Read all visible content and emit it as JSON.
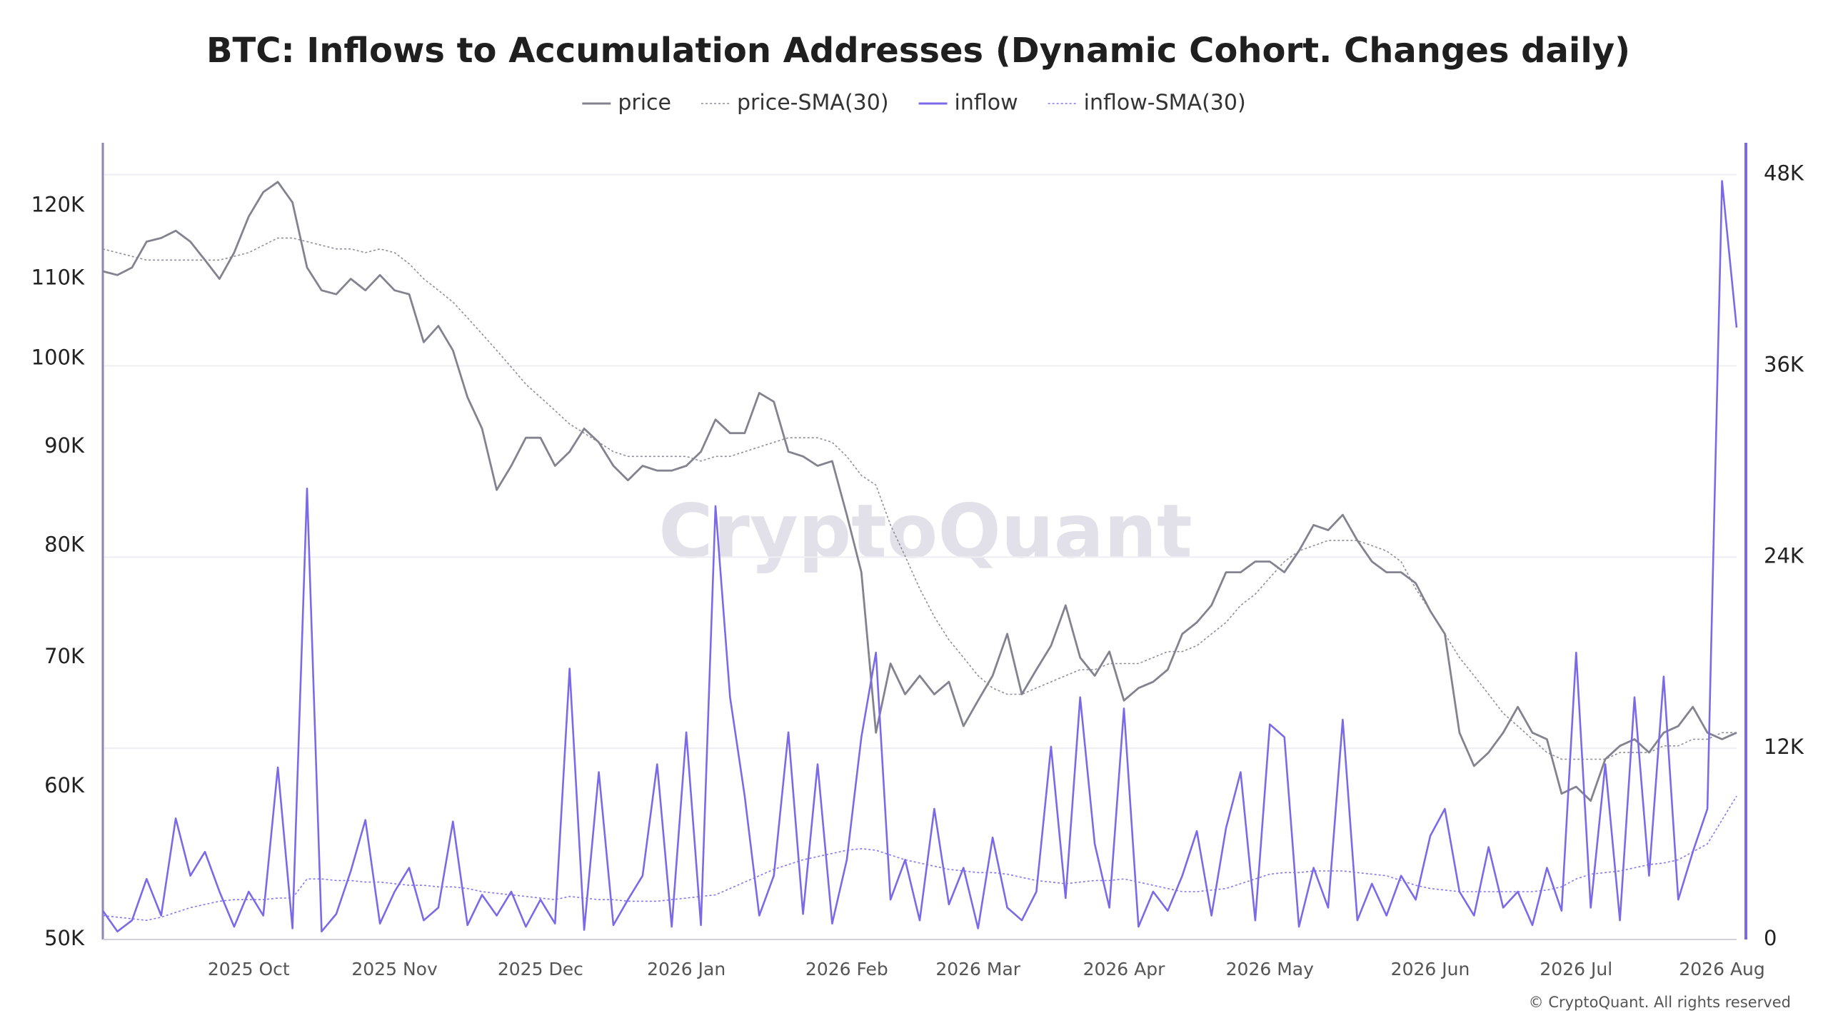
{
  "chart_data": {
    "type": "line",
    "title": "BTC: Inflows to Accumulation Addresses (Dynamic Cohort. Changes daily)",
    "watermark": "CryptoQuant",
    "credit": "© CryptoQuant. All rights reserved",
    "categories": [
      null,
      null,
      null,
      null,
      null,
      null,
      null,
      null,
      null,
      null,
      "2025 Oct",
      null,
      null,
      null,
      null,
      null,
      null,
      null,
      null,
      null,
      "2025 Nov",
      null,
      null,
      null,
      null,
      null,
      null,
      null,
      null,
      null,
      "2025 Dec",
      null,
      null,
      null,
      null,
      null,
      null,
      null,
      null,
      null,
      "2026 Jan",
      null,
      null,
      null,
      null,
      null,
      null,
      null,
      null,
      null,
      null,
      "2026 Feb",
      null,
      null,
      null,
      null,
      null,
      null,
      null,
      null,
      "2026 Mar",
      null,
      null,
      null,
      null,
      null,
      null,
      null,
      null,
      null,
      "2026 Apr",
      null,
      null,
      null,
      null,
      null,
      null,
      null,
      null,
      null,
      "2026 May",
      null,
      null,
      null,
      null,
      null,
      null,
      null,
      null,
      null,
      null,
      "2026 Jun",
      null,
      null,
      null,
      null,
      null,
      null,
      null,
      null,
      null,
      "2026 Jul",
      null,
      null,
      null,
      null,
      null,
      null,
      null,
      null,
      null,
      "2026 Aug",
      null
    ],
    "ylog": true,
    "ylim": [
      50000,
      129400
    ],
    "yticks": [
      {
        "value": 50000,
        "label": "50K"
      },
      {
        "value": 60000,
        "label": "60K"
      },
      {
        "value": 70000,
        "label": "70K"
      },
      {
        "value": 80000,
        "label": "80K"
      },
      {
        "value": 90000,
        "label": "90K"
      },
      {
        "value": 100000,
        "label": "100K"
      },
      {
        "value": 110000,
        "label": "110K"
      },
      {
        "value": 120000,
        "label": "120K"
      }
    ],
    "y2lim": [
      0,
      50000
    ],
    "y2ticks": [
      0,
      {
        "value": 12000,
        "label": "12K"
      },
      {
        "value": 24000,
        "label": "24K"
      },
      {
        "value": 36000,
        "label": "36K"
      },
      {
        "value": 48000,
        "label": "48K"
      }
    ],
    "grid": true,
    "legend": "top",
    "series": [
      {
        "name": "price",
        "color": "#83838f",
        "dashed": false,
        "values": [
          111000,
          110500,
          111500,
          115000,
          115500,
          116500,
          115000,
          112500,
          110000,
          113500,
          118500,
          122000,
          123500,
          120500,
          111500,
          108500,
          108000,
          110000,
          108500,
          110500,
          108500,
          108000,
          102000,
          104000,
          101000,
          95500,
          92000,
          85500,
          88000,
          91000,
          91000,
          88000,
          89500,
          92000,
          90500,
          88000,
          86500,
          88000,
          87500,
          87500,
          88000,
          89500,
          93000,
          91500,
          91500,
          96000,
          95000,
          89500,
          89000,
          88000,
          88500,
          83000,
          77500,
          64000,
          69500,
          67000,
          68500,
          67000,
          68000,
          64500,
          66500,
          68500,
          72000,
          67000,
          69000,
          71000,
          74500,
          70000,
          68500,
          70500,
          66500,
          67500,
          68000,
          69000,
          72000,
          73000,
          74500,
          77500,
          77500,
          78500,
          78500,
          77500,
          79500,
          82000,
          81500,
          83000,
          80500,
          78500,
          77500,
          77500,
          76500,
          74000,
          72000,
          64000,
          61500,
          62500,
          64000,
          66000,
          64000,
          63500,
          59500,
          60000,
          59000,
          62000,
          63000,
          63500,
          62500,
          64000,
          64500,
          66000,
          64000,
          63500,
          64000
        ]
      },
      {
        "name": "price-SMA(30)",
        "color": "#8e8e99",
        "dashed": true,
        "values": [
          114000,
          113500,
          113000,
          112500,
          112500,
          112500,
          112500,
          112500,
          112500,
          113000,
          113500,
          114500,
          115500,
          115500,
          115000,
          114500,
          114000,
          114000,
          113500,
          114000,
          113500,
          112000,
          110000,
          108500,
          107000,
          105000,
          103000,
          101000,
          99000,
          97000,
          95500,
          94000,
          92500,
          91500,
          90500,
          89500,
          89000,
          89000,
          89000,
          89000,
          89000,
          88500,
          89000,
          89000,
          89500,
          90000,
          90500,
          91000,
          91000,
          91000,
          90500,
          89000,
          87000,
          86000,
          82000,
          79000,
          76000,
          73500,
          71500,
          70000,
          68500,
          67500,
          67000,
          67000,
          67500,
          68000,
          68500,
          69000,
          69000,
          69500,
          69500,
          69500,
          70000,
          70500,
          70500,
          71000,
          72000,
          73000,
          74500,
          75500,
          77000,
          78500,
          79500,
          80000,
          80500,
          80500,
          80500,
          80000,
          79500,
          78500,
          76000,
          74000,
          72000,
          70000,
          68500,
          67000,
          65500,
          64500,
          63500,
          62500,
          62000,
          62000,
          62000,
          62000,
          62500,
          62500,
          62500,
          63000,
          63000,
          63500,
          63500,
          64000,
          64000
        ]
      },
      {
        "name": "inflow",
        "color": "#7b6ae8",
        "dashed": false,
        "axis": "y2",
        "values": [
          1800,
          500,
          1200,
          3800,
          1500,
          7600,
          4000,
          5500,
          3000,
          800,
          3000,
          1500,
          10800,
          700,
          28300,
          500,
          1600,
          4300,
          7500,
          1000,
          3000,
          4500,
          1200,
          2000,
          7400,
          900,
          2800,
          1500,
          3000,
          800,
          2500,
          1000,
          17000,
          600,
          10500,
          900,
          2500,
          4000,
          11000,
          800,
          13000,
          900,
          27200,
          15200,
          9000,
          1500,
          4000,
          13000,
          1600,
          11000,
          1000,
          5000,
          12700,
          18000,
          2500,
          5000,
          1200,
          8200,
          2200,
          4500,
          700,
          6400,
          2000,
          1200,
          3000,
          12100,
          2600,
          15200,
          6000,
          2000,
          14500,
          800,
          3000,
          1800,
          4000,
          6800,
          1500,
          7000,
          10500,
          1200,
          13500,
          12700,
          800,
          4500,
          2000,
          13800,
          1200,
          3500,
          1500,
          4000,
          2500,
          6500,
          8200,
          3000,
          1500,
          5800,
          2000,
          3000,
          900,
          4500,
          1800,
          18000,
          2000,
          11000,
          1200,
          15200,
          4000,
          16500,
          2500,
          5500,
          8200,
          47600,
          38400
        ]
      },
      {
        "name": "inflow-SMA(30)",
        "color": "#8677ee",
        "dashed": true,
        "axis": "y2",
        "values": [
          1500,
          1400,
          1300,
          1200,
          1400,
          1700,
          2000,
          2200,
          2400,
          2500,
          2500,
          2500,
          2600,
          2600,
          3800,
          3800,
          3700,
          3700,
          3600,
          3600,
          3500,
          3400,
          3400,
          3300,
          3300,
          3200,
          3000,
          2900,
          2800,
          2700,
          2600,
          2500,
          2700,
          2600,
          2500,
          2500,
          2400,
          2400,
          2400,
          2500,
          2600,
          2700,
          2800,
          3200,
          3600,
          4000,
          4400,
          4700,
          5000,
          5200,
          5400,
          5600,
          5700,
          5600,
          5300,
          5000,
          4800,
          4600,
          4400,
          4300,
          4200,
          4200,
          4100,
          3900,
          3700,
          3600,
          3500,
          3600,
          3700,
          3700,
          3800,
          3600,
          3400,
          3200,
          3000,
          3000,
          3100,
          3200,
          3500,
          3800,
          4100,
          4200,
          4200,
          4300,
          4300,
          4300,
          4200,
          4100,
          4000,
          3700,
          3400,
          3200,
          3100,
          3000,
          3000,
          3000,
          3000,
          3000,
          3000,
          3100,
          3300,
          3800,
          4100,
          4200,
          4300,
          4500,
          4700,
          4800,
          5000,
          5500,
          6000,
          7500,
          9000
        ]
      }
    ]
  }
}
